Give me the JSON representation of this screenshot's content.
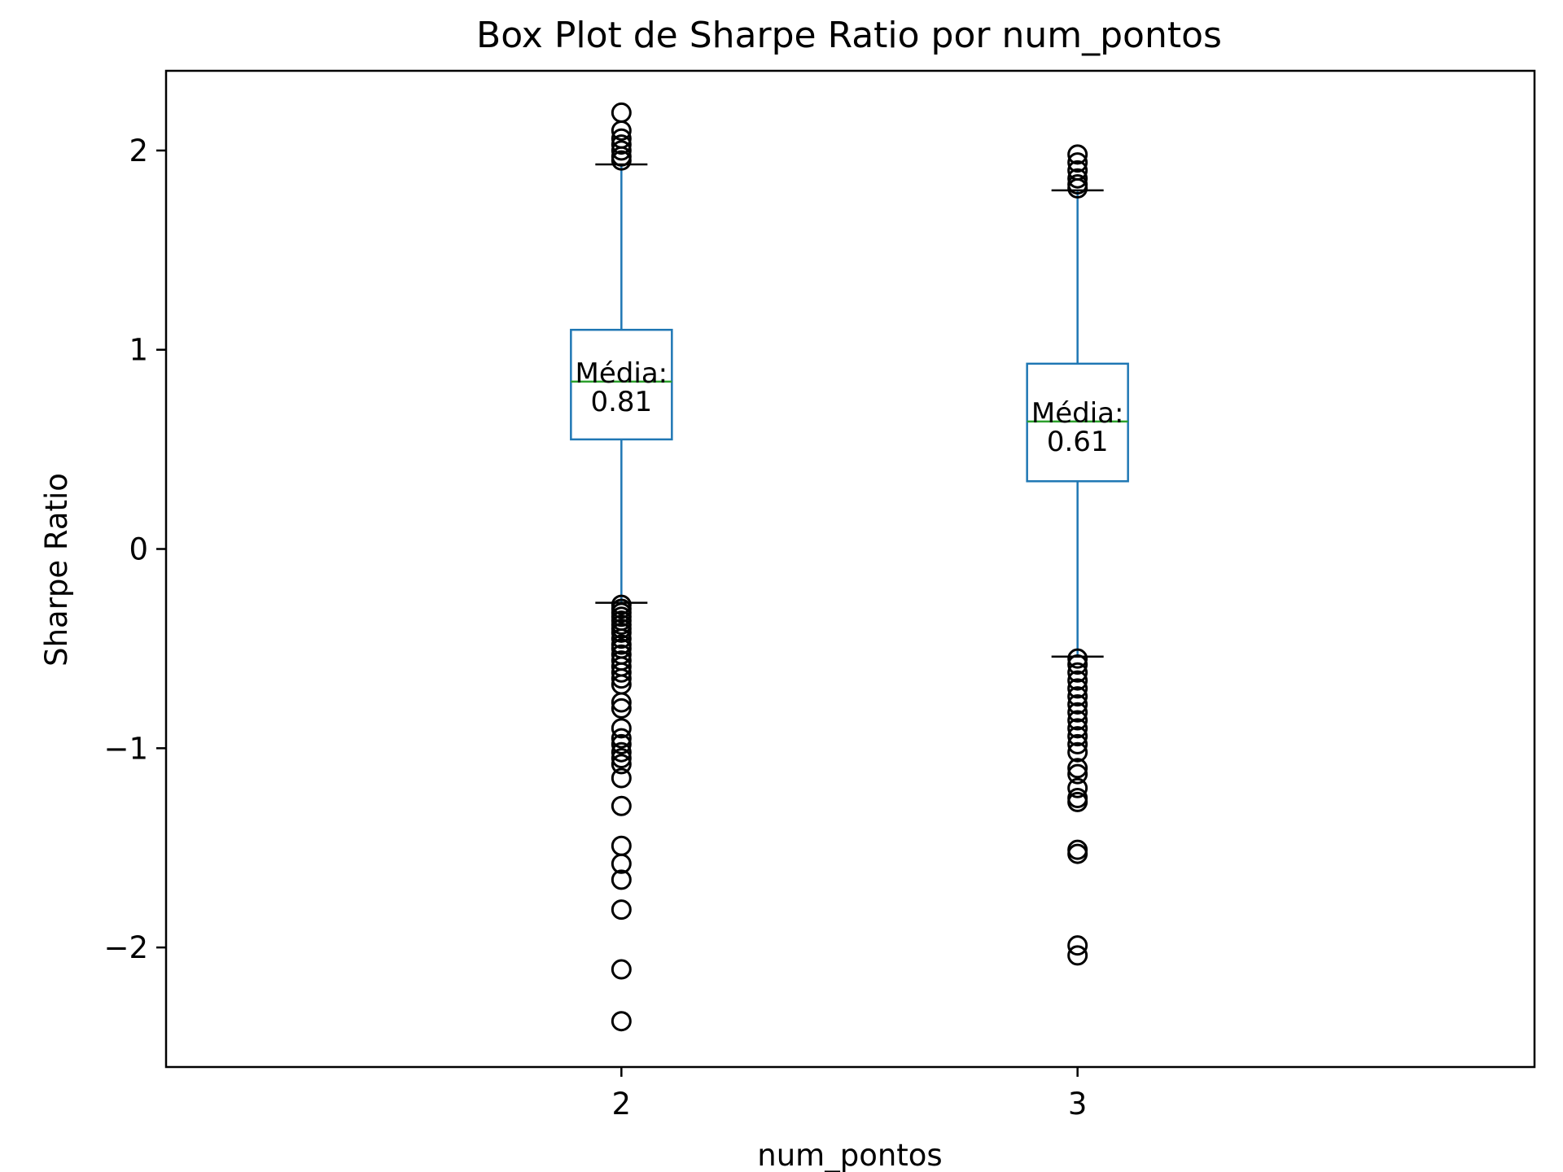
{
  "chart_data": {
    "type": "box",
    "title": "Box Plot de Sharpe Ratio por num_pontos",
    "xlabel": "num_pontos",
    "ylabel": "Sharpe Ratio",
    "ylim": [
      -2.6,
      2.4
    ],
    "yticks": [
      {
        "value": -2,
        "label": "−2"
      },
      {
        "value": -1,
        "label": "−1"
      },
      {
        "value": 0,
        "label": "0"
      },
      {
        "value": 1,
        "label": "1"
      },
      {
        "value": 2,
        "label": "2"
      }
    ],
    "categories": [
      "2",
      "3"
    ],
    "grid": false,
    "legend": "none",
    "colors": {
      "box": "#1f77b4",
      "median": "#2ca02c",
      "caps": "#000000",
      "fliers": "#000000"
    },
    "boxes": [
      {
        "category": "2",
        "whisker_low": -0.27,
        "q1": 0.55,
        "median": 0.84,
        "q3": 1.1,
        "whisker_high": 1.93,
        "annotation_label": "Média:",
        "annotation_value": "0.81",
        "annotation_y": 0.81,
        "fliers": [
          2.19,
          2.1,
          2.06,
          2.03,
          2.0,
          1.97,
          1.95,
          -0.28,
          -0.3,
          -0.32,
          -0.34,
          -0.36,
          -0.38,
          -0.4,
          -0.42,
          -0.45,
          -0.48,
          -0.5,
          -0.53,
          -0.56,
          -0.59,
          -0.62,
          -0.65,
          -0.68,
          -0.77,
          -0.8,
          -0.9,
          -0.95,
          -0.98,
          -1.02,
          -1.05,
          -1.08,
          -1.15,
          -1.29,
          -1.49,
          -1.58,
          -1.66,
          -1.81,
          -2.11,
          -2.37
        ]
      },
      {
        "category": "3",
        "whisker_low": -0.54,
        "q1": 0.34,
        "median": 0.64,
        "q3": 0.93,
        "whisker_high": 1.8,
        "annotation_label": "Média:",
        "annotation_value": "0.61",
        "annotation_y": 0.61,
        "fliers": [
          1.98,
          1.94,
          1.9,
          1.86,
          1.83,
          1.81,
          -0.55,
          -0.58,
          -0.62,
          -0.66,
          -0.7,
          -0.74,
          -0.78,
          -0.82,
          -0.86,
          -0.9,
          -0.94,
          -0.98,
          -1.02,
          -1.1,
          -1.13,
          -1.2,
          -1.25,
          -1.27,
          -1.51,
          -1.53,
          -1.99,
          -2.04
        ]
      }
    ]
  }
}
